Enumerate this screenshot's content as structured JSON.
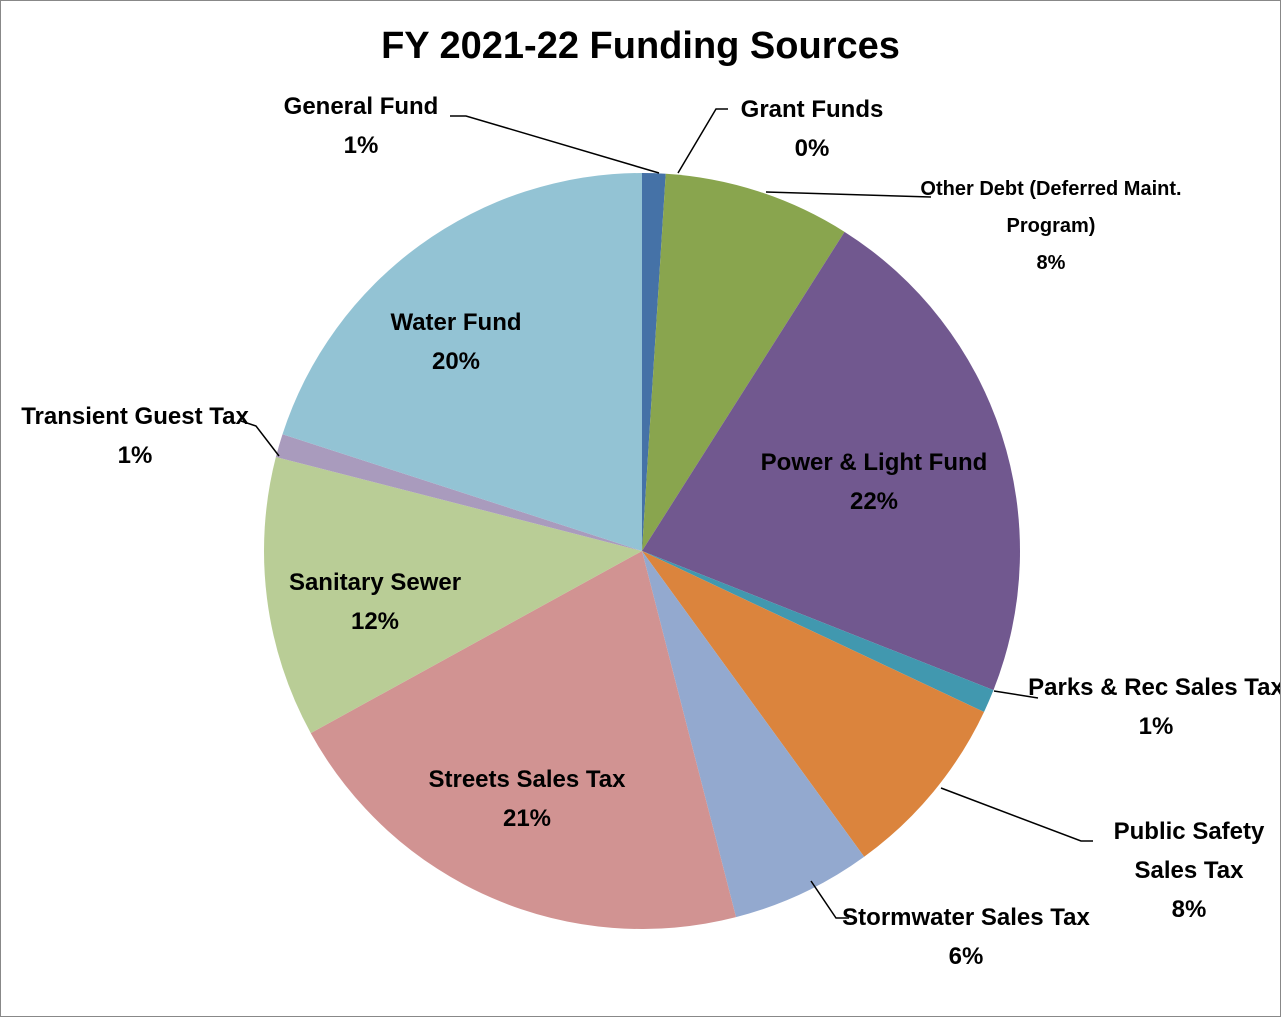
{
  "chart_data": {
    "type": "pie",
    "title": "FY 2021-22 Funding Sources",
    "categories": [
      "General Fund",
      "Grant Funds",
      "Other Debt (Deferred Maint. Program)",
      "Power & Light Fund",
      "Parks & Rec Sales Tax",
      "Public Safety Sales Tax",
      "Stormwater Sales Tax",
      "Streets Sales Tax",
      "Sanitary Sewer",
      "Transient Guest Tax",
      "Water Fund"
    ],
    "values": [
      1,
      0,
      8,
      22,
      1,
      8,
      6,
      21,
      12,
      1,
      20
    ],
    "value_labels": [
      "1%",
      "0%",
      "8%",
      "22%",
      "1%",
      "8%",
      "6%",
      "21%",
      "12%",
      "1%",
      "20%"
    ],
    "colors": [
      "#4572a7",
      "#4198af",
      "#89a54e",
      "#71588f",
      "#4198af",
      "#db843d",
      "#93a9cf",
      "#d19392",
      "#b9cd96",
      "#a99bbd",
      "#93c3d4"
    ]
  }
}
